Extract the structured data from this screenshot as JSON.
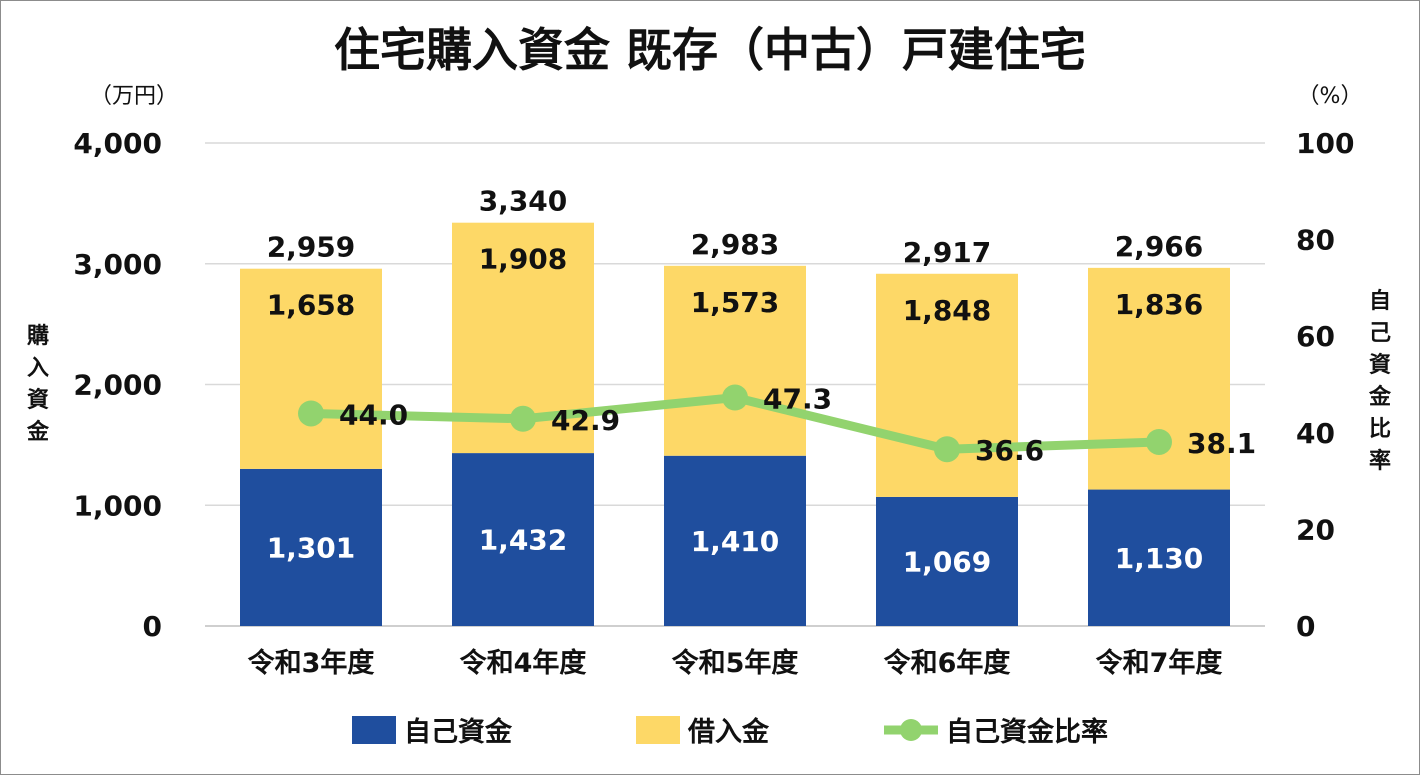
{
  "chart_data": {
    "type": "bar",
    "stacked": true,
    "title": "住宅購入資金 既存（中古）戸建住宅",
    "categories": [
      "令和3年度",
      "令和4年度",
      "令和5年度",
      "令和6年度",
      "令和7年度"
    ],
    "series": [
      {
        "name": "自己資金",
        "type": "bar",
        "axis": "left",
        "color": "#1f4e9e",
        "values": [
          1301,
          1432,
          1410,
          1069,
          1130
        ]
      },
      {
        "name": "借入金",
        "type": "bar",
        "axis": "left",
        "color": "#fdd867",
        "values": [
          1658,
          1908,
          1573,
          1848,
          1836
        ]
      },
      {
        "name": "自己資金比率",
        "type": "line",
        "axis": "right",
        "color": "#92d36e",
        "values": [
          44.0,
          42.9,
          47.3,
          36.6,
          38.1
        ]
      }
    ],
    "totals": [
      2959,
      3340,
      2983,
      2917,
      2966
    ],
    "left_axis": {
      "label": "購入資金",
      "unit": "（万円）",
      "range": [
        0,
        4000
      ],
      "ticks": [
        0,
        1000,
        2000,
        3000,
        4000
      ]
    },
    "right_axis": {
      "label": "自己資金比率",
      "unit": "（%）",
      "range": [
        0,
        100
      ],
      "ticks": [
        0,
        20,
        40,
        60,
        80,
        100
      ]
    },
    "grid": true,
    "legend_position": "bottom"
  }
}
